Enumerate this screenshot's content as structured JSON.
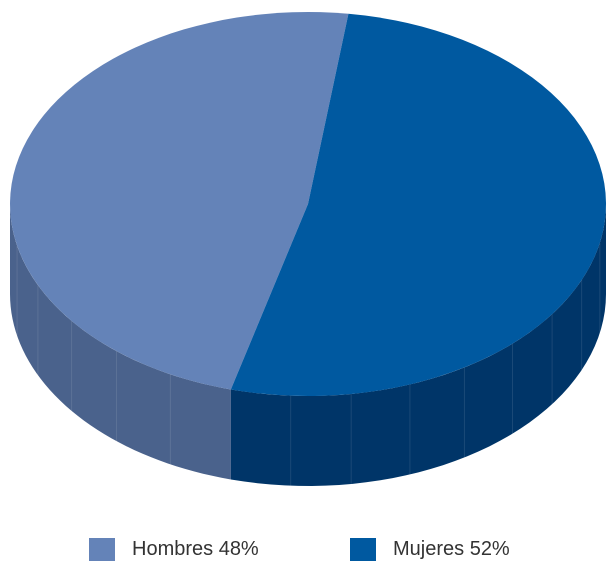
{
  "chart_data": {
    "type": "pie",
    "style": "3d",
    "labels": [
      "Hombres",
      "Mujeres"
    ],
    "values": [
      48,
      52
    ],
    "legend_labels": [
      "Hombres 48%",
      "Mujeres 52%"
    ],
    "colors": {
      "Hombres": {
        "top": "#6483B8",
        "side": "#4A628C"
      },
      "Mujeres": {
        "top": "#0059A0",
        "side": "#003568"
      }
    },
    "legend_position": "bottom"
  }
}
